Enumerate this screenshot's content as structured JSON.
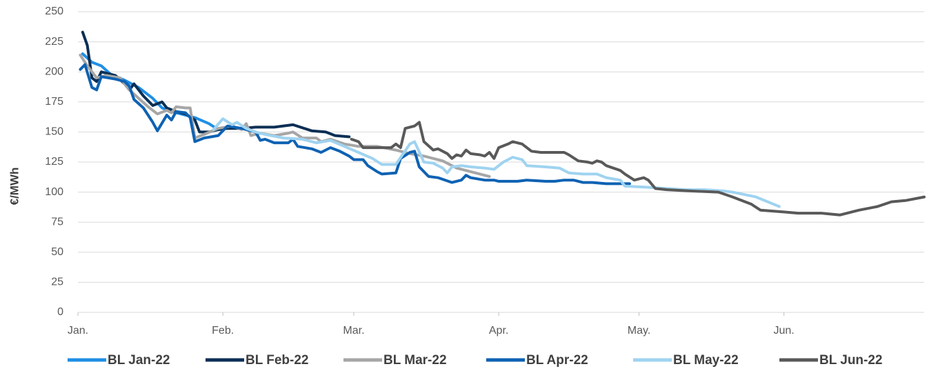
{
  "chart_data": {
    "type": "line",
    "y_label": "€/MWh",
    "xlim": [
      0,
      181
    ],
    "xticks": [
      {
        "value": 0,
        "label": "Jan."
      },
      {
        "value": 31,
        "label": "Feb."
      },
      {
        "value": 59,
        "label": "Mar."
      },
      {
        "value": 90,
        "label": "Apr."
      },
      {
        "value": 120,
        "label": "May."
      },
      {
        "value": 151,
        "label": "Jun."
      }
    ],
    "ylim": [
      0,
      250
    ],
    "yticks": [
      0,
      25,
      50,
      75,
      100,
      125,
      150,
      175,
      200,
      225,
      250
    ],
    "grid": true,
    "legend": "bottom",
    "series": [
      {
        "name": "BL Jan-22",
        "color": "#1f8fe5",
        "x": [
          1,
          3,
          5,
          7,
          10,
          13,
          16,
          18,
          20,
          22,
          25,
          28,
          30,
          31
        ],
        "values": [
          215,
          208,
          205,
          198,
          193,
          187,
          178,
          170,
          167,
          165,
          162,
          157,
          152,
          152
        ]
      },
      {
        "name": "BL Feb-22",
        "color": "#0b2f55",
        "x": [
          1,
          2,
          3,
          4,
          5,
          8,
          10,
          11,
          12,
          14,
          16,
          18,
          19,
          21,
          23,
          25,
          26,
          28,
          30,
          32,
          35,
          38,
          42,
          46,
          50,
          53,
          55,
          58
        ],
        "values": [
          233,
          222,
          195,
          192,
          200,
          197,
          190,
          185,
          190,
          180,
          172,
          175,
          170,
          167,
          165,
          160,
          150,
          150,
          152,
          153,
          153,
          154,
          154,
          156,
          151,
          150,
          147,
          146
        ]
      },
      {
        "name": "BL Mar-22",
        "color": "#a6a6a6",
        "x": [
          0.5,
          2,
          4,
          6,
          9,
          11,
          13,
          15,
          17,
          19,
          20,
          21,
          23,
          24,
          25,
          27,
          30,
          33,
          35,
          36,
          37,
          39,
          42,
          45,
          46,
          48,
          51,
          52,
          54,
          57,
          60,
          64,
          68,
          71,
          74,
          78,
          81,
          85,
          88
        ],
        "values": [
          214,
          205,
          195,
          197,
          195,
          185,
          178,
          171,
          165,
          168,
          166,
          171,
          170,
          170,
          145,
          148,
          153,
          155,
          152,
          157,
          147,
          149,
          147,
          149,
          150,
          145,
          145,
          142,
          144,
          140,
          138,
          138,
          135,
          132,
          130,
          126,
          120,
          116,
          113
        ]
      },
      {
        "name": "BL Apr-22",
        "color": "#0e62b3",
        "x": [
          0.5,
          1.5,
          3,
          4,
          5,
          8,
          10,
          11,
          12,
          14,
          16,
          17,
          19,
          20,
          21,
          23,
          24,
          25,
          27,
          30,
          32,
          35,
          38,
          39,
          40,
          42,
          45,
          46,
          47,
          50,
          52,
          54,
          56,
          58,
          59,
          61,
          62,
          64,
          65,
          68,
          69,
          71,
          72,
          73,
          75,
          77,
          80,
          82,
          83,
          84,
          87,
          89,
          90,
          94,
          96,
          100,
          102,
          104,
          106,
          108,
          110,
          113,
          118
        ],
        "values": [
          202,
          206,
          187,
          185,
          196,
          194,
          192,
          188,
          177,
          170,
          158,
          151,
          164,
          160,
          167,
          166,
          162,
          142,
          145,
          147,
          155,
          153,
          150,
          143,
          144,
          141,
          141,
          144,
          138,
          136,
          133,
          137,
          134,
          130,
          127,
          127,
          122,
          117,
          115,
          116,
          128,
          133,
          134,
          121,
          113,
          112,
          108,
          110,
          114,
          112,
          110,
          110,
          109,
          109,
          110,
          109,
          109,
          110,
          110,
          108,
          108,
          107,
          107
        ]
      },
      {
        "name": "BL May-22",
        "color": "#9fd3f0",
        "x": [
          29,
          31,
          33,
          34,
          36,
          38,
          40,
          44,
          48,
          51,
          54,
          57,
          60,
          63,
          65,
          68,
          71,
          72,
          74,
          76,
          78,
          79,
          80,
          82,
          84,
          87,
          89,
          91,
          93,
          95,
          96,
          100,
          103,
          105,
          108,
          111,
          113,
          116,
          117,
          122,
          126,
          130,
          134,
          138,
          140,
          145,
          150
        ],
        "values": [
          152,
          161,
          156,
          158,
          153,
          150,
          148,
          145,
          144,
          141,
          143,
          138,
          133,
          128,
          123,
          123,
          140,
          142,
          125,
          124,
          120,
          116,
          121,
          122,
          121,
          120,
          119,
          125,
          129,
          127,
          122,
          121,
          120,
          116,
          115,
          115,
          112,
          110,
          105,
          104,
          103,
          102,
          102,
          101,
          100,
          96,
          88
        ]
      },
      {
        "name": "BL Jun-22",
        "color": "#595959",
        "x": [
          58.5,
          60,
          61,
          65,
          67,
          68,
          69,
          70,
          72,
          73,
          74,
          76,
          77,
          79,
          80,
          81,
          82,
          83,
          84,
          86,
          87,
          88,
          89,
          90,
          92,
          93,
          95,
          96,
          97,
          99,
          101,
          104,
          105,
          107,
          109,
          110,
          111,
          112,
          113,
          116,
          117,
          119,
          121,
          122,
          123.5,
          126,
          131,
          137,
          140,
          144,
          146,
          151,
          154,
          159,
          163,
          167,
          171,
          174,
          177,
          181
        ],
        "values": [
          144,
          142,
          137,
          137,
          137,
          140,
          137,
          153,
          155,
          158,
          142,
          135,
          136,
          132,
          128,
          131,
          130,
          135,
          132,
          131,
          130,
          133,
          128,
          137,
          140,
          142,
          140,
          137,
          134,
          133,
          133,
          133,
          131,
          126,
          125,
          124,
          126,
          125,
          122,
          118,
          115,
          110,
          112,
          110,
          103,
          102,
          101,
          100,
          96,
          90,
          85,
          83.5,
          82.5,
          82.5,
          81,
          85,
          88,
          92,
          93,
          96
        ]
      }
    ]
  }
}
